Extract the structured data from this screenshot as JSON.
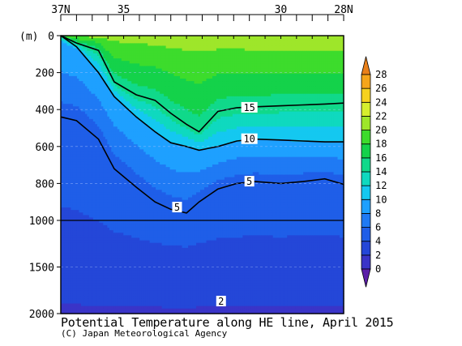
{
  "chart_data": {
    "type": "contour",
    "title": "Potential Temperature along HE line, April 2015",
    "credit": "(C) Japan Meteorological Agency",
    "ylabel": "(m)",
    "x_ticks": [
      "37N",
      "35",
      "30",
      "28N"
    ],
    "x_tick_values": [
      37,
      35,
      30,
      28
    ],
    "xlim": [
      37,
      28
    ],
    "y_ticks": [
      0,
      200,
      400,
      600,
      800,
      1000,
      1500,
      2000
    ],
    "ylim": [
      0,
      2000
    ],
    "y_axis_note": "scale changes at 1000 m",
    "contour_labels": [
      {
        "text": "15",
        "lat": 31.0,
        "depth": 390
      },
      {
        "text": "10",
        "lat": 31.0,
        "depth": 560
      },
      {
        "text": "5",
        "lat": 31.0,
        "depth": 790
      },
      {
        "text": "5",
        "lat": 33.3,
        "depth": 930
      },
      {
        "text": "2",
        "lat": 31.9,
        "depth": 1870
      }
    ],
    "colorbar": {
      "levels": [
        0,
        2,
        4,
        6,
        8,
        10,
        12,
        14,
        16,
        18,
        20,
        22,
        24,
        26,
        28
      ],
      "colors": [
        "#5b1ea8",
        "#3a34c8",
        "#2447d8",
        "#1f5ee8",
        "#1f7af4",
        "#1ea0ff",
        "#14c8f0",
        "#0fd9bf",
        "#10d98a",
        "#14d24a",
        "#3ddc2c",
        "#9ee62a",
        "#d6ee2e",
        "#f6d21e",
        "#f5a51a",
        "#e9801a"
      ]
    },
    "isotherm_depths": {
      "lats": [
        37.0,
        36.5,
        35.8,
        35.3,
        34.6,
        34.0,
        33.5,
        33.0,
        32.6,
        32.0,
        31.4,
        30.8,
        30.0,
        29.3,
        28.6,
        28.0
      ],
      "t15": [
        0,
        40,
        80,
        250,
        320,
        350,
        420,
        480,
        520,
        410,
        390,
        385,
        380,
        375,
        370,
        365
      ],
      "t10": [
        0,
        60,
        200,
        330,
        440,
        520,
        580,
        600,
        620,
        600,
        570,
        560,
        565,
        570,
        575,
        575
      ],
      "t5": [
        440,
        460,
        560,
        720,
        820,
        900,
        940,
        960,
        900,
        830,
        800,
        790,
        800,
        790,
        775,
        805
      ]
    }
  }
}
